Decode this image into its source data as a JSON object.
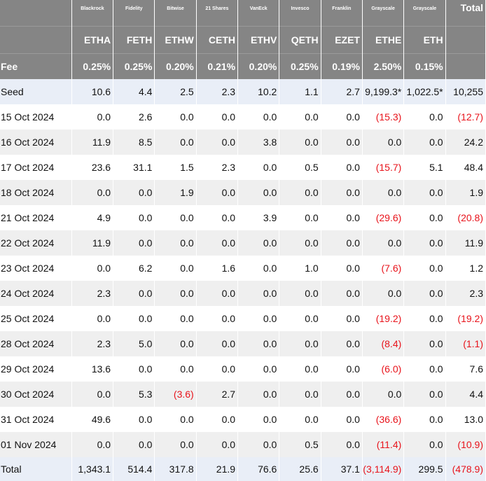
{
  "providers": [
    "Blackrock",
    "Fidelity",
    "Bitwise",
    "21 Shares",
    "VanEck",
    "Invesco",
    "Franklin",
    "Grayscale",
    "Grayscale"
  ],
  "total_label": "Total",
  "tickers": [
    "ETHA",
    "FETH",
    "ETHW",
    "CETH",
    "ETHV",
    "QETH",
    "EZET",
    "ETHE",
    "ETH"
  ],
  "fee_label": "Fee",
  "fees": [
    "0.25%",
    "0.25%",
    "0.20%",
    "0.21%",
    "0.20%",
    "0.25%",
    "0.19%",
    "2.50%",
    "0.15%"
  ],
  "rows": [
    {
      "label": "Seed",
      "values": [
        "10.6",
        "4.4",
        "2.5",
        "2.3",
        "10.2",
        "1.1",
        "2.7",
        "9,199.3*",
        "1,022.5*",
        "10,255"
      ],
      "kind": "seed"
    },
    {
      "label": "15 Oct 2024",
      "values": [
        "0.0",
        "2.6",
        "0.0",
        "0.0",
        "0.0",
        "0.0",
        "0.0",
        "(15.3)",
        "0.0",
        "(12.7)"
      ]
    },
    {
      "label": "16 Oct 2024",
      "values": [
        "11.9",
        "8.5",
        "0.0",
        "0.0",
        "3.8",
        "0.0",
        "0.0",
        "0.0",
        "0.0",
        "24.2"
      ]
    },
    {
      "label": "17 Oct 2024",
      "values": [
        "23.6",
        "31.1",
        "1.5",
        "2.3",
        "0.0",
        "0.5",
        "0.0",
        "(15.7)",
        "5.1",
        "48.4"
      ]
    },
    {
      "label": "18 Oct 2024",
      "values": [
        "0.0",
        "0.0",
        "1.9",
        "0.0",
        "0.0",
        "0.0",
        "0.0",
        "0.0",
        "0.0",
        "1.9"
      ]
    },
    {
      "label": "21 Oct 2024",
      "values": [
        "4.9",
        "0.0",
        "0.0",
        "0.0",
        "3.9",
        "0.0",
        "0.0",
        "(29.6)",
        "0.0",
        "(20.8)"
      ]
    },
    {
      "label": "22 Oct 2024",
      "values": [
        "11.9",
        "0.0",
        "0.0",
        "0.0",
        "0.0",
        "0.0",
        "0.0",
        "0.0",
        "0.0",
        "11.9"
      ]
    },
    {
      "label": "23 Oct 2024",
      "values": [
        "0.0",
        "6.2",
        "0.0",
        "1.6",
        "0.0",
        "1.0",
        "0.0",
        "(7.6)",
        "0.0",
        "1.2"
      ]
    },
    {
      "label": "24 Oct 2024",
      "values": [
        "2.3",
        "0.0",
        "0.0",
        "0.0",
        "0.0",
        "0.0",
        "0.0",
        "0.0",
        "0.0",
        "2.3"
      ]
    },
    {
      "label": "25 Oct 2024",
      "values": [
        "0.0",
        "0.0",
        "0.0",
        "0.0",
        "0.0",
        "0.0",
        "0.0",
        "(19.2)",
        "0.0",
        "(19.2)"
      ]
    },
    {
      "label": "28 Oct 2024",
      "values": [
        "2.3",
        "5.0",
        "0.0",
        "0.0",
        "0.0",
        "0.0",
        "0.0",
        "(8.4)",
        "0.0",
        "(1.1)"
      ]
    },
    {
      "label": "29 Oct 2024",
      "values": [
        "13.6",
        "0.0",
        "0.0",
        "0.0",
        "0.0",
        "0.0",
        "0.0",
        "(6.0)",
        "0.0",
        "7.6"
      ]
    },
    {
      "label": "30 Oct 2024",
      "values": [
        "0.0",
        "5.3",
        "(3.6)",
        "2.7",
        "0.0",
        "0.0",
        "0.0",
        "0.0",
        "0.0",
        "4.4"
      ]
    },
    {
      "label": "31 Oct 2024",
      "values": [
        "49.6",
        "0.0",
        "0.0",
        "0.0",
        "0.0",
        "0.0",
        "0.0",
        "(36.6)",
        "0.0",
        "13.0"
      ]
    },
    {
      "label": "01 Nov 2024",
      "values": [
        "0.0",
        "0.0",
        "0.0",
        "0.0",
        "0.0",
        "0.5",
        "0.0",
        "(11.4)",
        "0.0",
        "(10.9)"
      ]
    },
    {
      "label": "Total",
      "values": [
        "1,343.1",
        "514.4",
        "317.8",
        "21.9",
        "76.6",
        "25.6",
        "37.1",
        "(3,114.9)",
        "299.5",
        "(478.9)"
      ],
      "kind": "total"
    }
  ],
  "colors": {
    "header_bg": "#858585",
    "stripe": "#efefef",
    "highlight": "#e9eef7",
    "negative": "#e8131b"
  }
}
